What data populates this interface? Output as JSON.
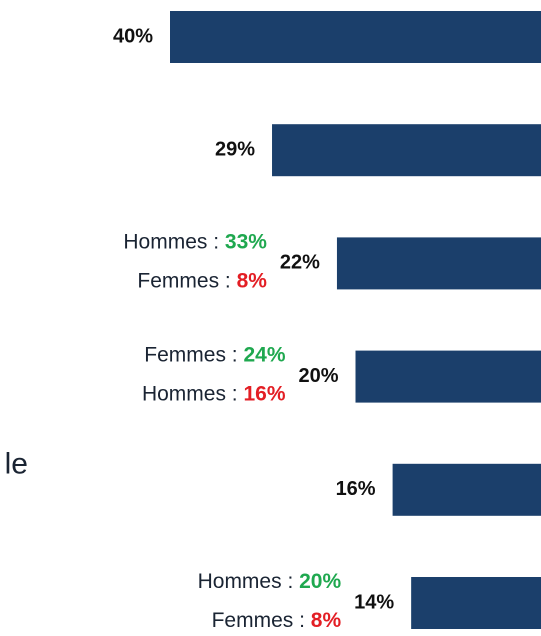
{
  "chart_data": {
    "type": "hbar",
    "categories": [
      null,
      null,
      null,
      null,
      "le",
      null
    ],
    "values": [
      40,
      29,
      22,
      20,
      16,
      14
    ],
    "value_labels": [
      "40%",
      "29%",
      "22%",
      "20%",
      "16%",
      "14%"
    ],
    "color": "#1b3f6b",
    "xlim": [
      0,
      40
    ],
    "annotations": [
      null,
      null,
      [
        {
          "text": "Hommes : ",
          "highlight": "33%",
          "color": "#1fa84f"
        },
        {
          "text": "Femmes : ",
          "highlight": "8%",
          "color": "#e31e24"
        }
      ],
      [
        {
          "text": "Femmes : ",
          "highlight": "24%",
          "color": "#1fa84f"
        },
        {
          "text": "Hommes : ",
          "highlight": "16%",
          "color": "#e31e24"
        }
      ],
      null,
      [
        {
          "text": "Hommes : ",
          "highlight": "20%",
          "color": "#1fa84f"
        },
        {
          "text": "Femmes : ",
          "highlight": "8%",
          "color": "#e31e24"
        }
      ]
    ]
  }
}
